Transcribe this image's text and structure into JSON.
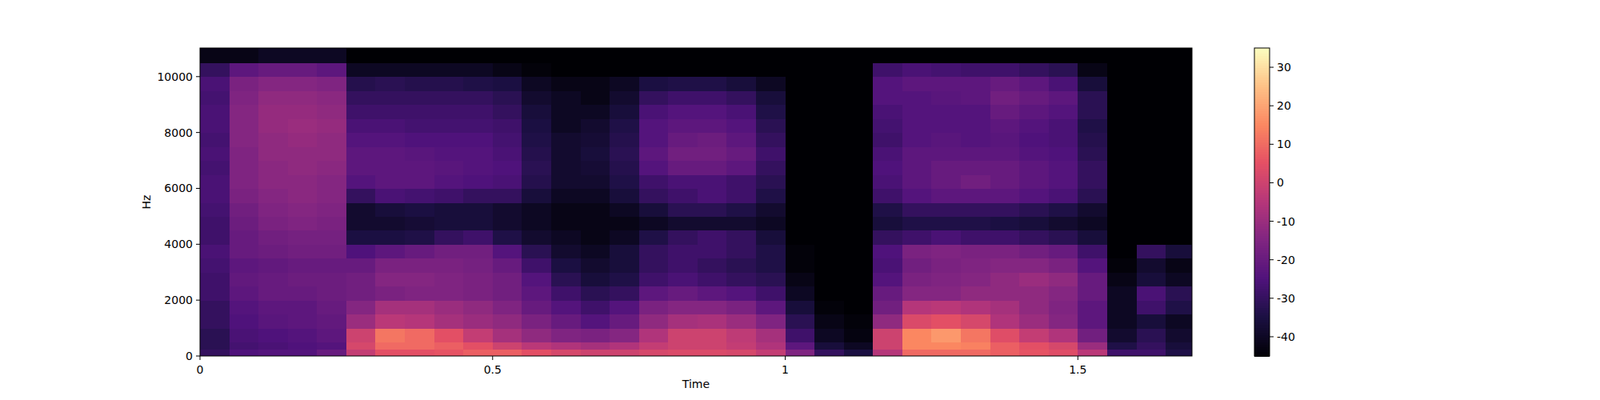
{
  "chart_data": {
    "type": "heatmap",
    "x_label": "Time",
    "y_label": "Hz",
    "xlim": [
      0,
      1.695
    ],
    "ylim": [
      0,
      11025
    ],
    "xticks": [
      0,
      0.5,
      1,
      1.5
    ],
    "yticks": [
      0,
      2000,
      4000,
      6000,
      8000,
      10000
    ],
    "x_edges": [
      0,
      0.05,
      0.1,
      0.15,
      0.2,
      0.25,
      0.3,
      0.35,
      0.4,
      0.45,
      0.5,
      0.55,
      0.6,
      0.65,
      0.7,
      0.75,
      0.8,
      0.85,
      0.9,
      0.95,
      1.0,
      1.05,
      1.1,
      1.15,
      1.2,
      1.25,
      1.3,
      1.35,
      1.4,
      1.45,
      1.5,
      1.55,
      1.6,
      1.65,
      1.695
    ],
    "y_edges": [
      0,
      250,
      500,
      1000,
      1500,
      2000,
      2500,
      3000,
      3500,
      4000,
      4500,
      5000,
      5500,
      6000,
      6500,
      7000,
      7500,
      8000,
      8500,
      9000,
      9500,
      10000,
      10500,
      11025
    ],
    "cells": [
      [
        -30,
        -32,
        -32,
        -30,
        -30,
        -28,
        -28,
        -27,
        -26,
        -28,
        -28,
        -27,
        -26,
        -26,
        -27,
        -26,
        -27,
        -26,
        -26,
        -27,
        -26,
        -30,
        -42
      ],
      [
        -25,
        -27,
        -26,
        -25,
        -24,
        -22,
        -21,
        -22,
        -20,
        -20,
        -19,
        -18,
        -16,
        -15,
        -15,
        -15,
        -14,
        -14,
        -14,
        -15,
        -16,
        -22,
        -42
      ],
      [
        -24,
        -26,
        -25,
        -23,
        -22,
        -20,
        -20,
        -21,
        -19,
        -18,
        -16,
        -15,
        -14,
        -13,
        -13,
        -12,
        -12,
        -11,
        -11,
        -12,
        -14,
        -20,
        -40
      ],
      [
        -24,
        -25,
        -24,
        -22,
        -22,
        -20,
        -19,
        -20,
        -18,
        -17,
        -15,
        -14,
        -13,
        -13,
        -12,
        -12,
        -11,
        -10,
        -11,
        -12,
        -14,
        -20,
        -40
      ],
      [
        -20,
        -24,
        -22,
        -21,
        -20,
        -19,
        -19,
        -20,
        -18,
        -17,
        -16,
        -15,
        -14,
        -14,
        -13,
        -12,
        -12,
        -11,
        -12,
        -13,
        -15,
        -22,
        -40
      ],
      [
        -2,
        2,
        0,
        -10,
        -14,
        -18,
        -18,
        -20,
        -25,
        -35,
        -38,
        -38,
        -30,
        -24,
        -22,
        -22,
        -24,
        -26,
        -28,
        -30,
        -33,
        -40,
        -45
      ],
      [
        5,
        10,
        12,
        -4,
        -8,
        -16,
        -14,
        -16,
        -22,
        -35,
        -38,
        -36,
        -26,
        -22,
        -22,
        -22,
        -24,
        -26,
        -28,
        -30,
        -32,
        -40,
        -45
      ],
      [
        5,
        10,
        10,
        -5,
        -8,
        -15,
        -14,
        -16,
        -20,
        -34,
        -37,
        -35,
        -27,
        -22,
        -22,
        -23,
        -25,
        -27,
        -28,
        -30,
        -33,
        -40,
        -45
      ],
      [
        6,
        8,
        5,
        -8,
        -10,
        -15,
        -15,
        -16,
        -18,
        -30,
        -36,
        -36,
        -28,
        -24,
        -23,
        -24,
        -25,
        -27,
        -28,
        -30,
        -33,
        -40,
        -45
      ],
      [
        8,
        5,
        -2,
        -10,
        -12,
        -16,
        -16,
        -17,
        -18,
        -28,
        -36,
        -36,
        -30,
        -25,
        -24,
        -24,
        -25,
        -27,
        -28,
        -30,
        -34,
        -40,
        -45
      ],
      [
        8,
        0,
        -8,
        -12,
        -15,
        -18,
        -18,
        -20,
        -24,
        -34,
        -38,
        -38,
        -30,
        -26,
        -25,
        -26,
        -27,
        -28,
        -30,
        -32,
        -35,
        -42,
        -45
      ],
      [
        5,
        -4,
        -12,
        -16,
        -20,
        -22,
        -24,
        -28,
        -32,
        -38,
        -40,
        -40,
        -36,
        -33,
        -32,
        -33,
        -34,
        -35,
        -36,
        -38,
        -40,
        -44,
        -45
      ],
      [
        2,
        -6,
        -15,
        -20,
        -24,
        -28,
        -32,
        -35,
        -38,
        -40,
        -42,
        -42,
        -40,
        -38,
        -38,
        -38,
        -38,
        -40,
        -40,
        -40,
        -42,
        -45,
        -45
      ],
      [
        0,
        -8,
        -16,
        -24,
        -28,
        -32,
        -36,
        -38,
        -40,
        -42,
        -42,
        -42,
        -40,
        -38,
        -37,
        -36,
        -37,
        -38,
        -40,
        -42,
        -42,
        -45,
        -45
      ],
      [
        0,
        -6,
        -14,
        -20,
        -24,
        -30,
        -34,
        -36,
        -36,
        -40,
        -42,
        -40,
        -36,
        -34,
        -33,
        -32,
        -33,
        -34,
        -36,
        -38,
        -40,
        -45,
        -45
      ],
      [
        2,
        -2,
        -6,
        -12,
        -16,
        -22,
        -28,
        -30,
        -30,
        -34,
        -40,
        -36,
        -30,
        -28,
        -24,
        -22,
        -24,
        -24,
        -26,
        -30,
        -35,
        -45,
        -45
      ],
      [
        3,
        0,
        0,
        -8,
        -14,
        -20,
        -26,
        -28,
        -28,
        -30,
        -38,
        -32,
        -28,
        -26,
        -20,
        -18,
        -20,
        -22,
        -24,
        -28,
        -34,
        -45,
        -45
      ],
      [
        3,
        0,
        0,
        -7,
        -14,
        -22,
        -28,
        -30,
        -28,
        -28,
        -38,
        -32,
        -26,
        -26,
        -20,
        -18,
        -19,
        -22,
        -24,
        -28,
        -34,
        -45,
        -45
      ],
      [
        2,
        -2,
        -3,
        -10,
        -16,
        -24,
        -30,
        -32,
        -30,
        -30,
        -38,
        -34,
        -28,
        -28,
        -22,
        -20,
        -22,
        -24,
        -26,
        -30,
        -36,
        -45,
        -45
      ],
      [
        -2,
        -6,
        -8,
        -15,
        -22,
        -28,
        -32,
        -34,
        -34,
        -36,
        -40,
        -38,
        -34,
        -32,
        -30,
        -28,
        -30,
        -32,
        -34,
        -36,
        -40,
        -45,
        -45
      ],
      [
        -15,
        -22,
        -28,
        -32,
        -36,
        -40,
        -42,
        -44,
        -44,
        -45,
        -45,
        -45,
        -45,
        -45,
        -45,
        -45,
        -45,
        -45,
        -45,
        -45,
        -45,
        -45,
        -45
      ],
      [
        -30,
        -36,
        -40,
        -42,
        -44,
        -45,
        -45,
        -45,
        -45,
        -45,
        -45,
        -45,
        -45,
        -45,
        -45,
        -45,
        -45,
        -45,
        -45,
        -45,
        -45,
        -45,
        -45
      ],
      [
        -35,
        -40,
        -43,
        -44,
        -45,
        -45,
        -45,
        -45,
        -45,
        -45,
        -45,
        -45,
        -45,
        -45,
        -45,
        -45,
        -45,
        -45,
        -45,
        -45,
        -45,
        -45,
        -45
      ],
      [
        -5,
        0,
        0,
        -12,
        -18,
        -20,
        -24,
        -26,
        -25,
        -30,
        -36,
        -34,
        -28,
        -26,
        -25,
        -26,
        -28,
        -27,
        -26,
        -24,
        -24,
        -28,
        -45
      ],
      [
        10,
        15,
        15,
        3,
        -5,
        -14,
        -16,
        -18,
        -16,
        -28,
        -34,
        -30,
        -24,
        -22,
        -22,
        -22,
        -24,
        -24,
        -24,
        -24,
        -22,
        -26,
        -45
      ],
      [
        10,
        15,
        18,
        5,
        -4,
        -14,
        -15,
        -16,
        -15,
        -26,
        -34,
        -30,
        -22,
        -20,
        -20,
        -22,
        -23,
        -24,
        -24,
        -23,
        -22,
        -27,
        -45
      ],
      [
        10,
        14,
        12,
        2,
        -6,
        -12,
        -14,
        -15,
        -16,
        -28,
        -34,
        -30,
        -22,
        -18,
        -20,
        -22,
        -24,
        -24,
        -24,
        -22,
        -22,
        -28,
        -45
      ],
      [
        8,
        8,
        4,
        -6,
        -8,
        -12,
        -12,
        -14,
        -16,
        -28,
        -35,
        -30,
        -22,
        -20,
        -20,
        -22,
        -23,
        -22,
        -20,
        -18,
        -20,
        -28,
        -45
      ],
      [
        6,
        5,
        -2,
        -10,
        -12,
        -12,
        -10,
        -14,
        -18,
        -30,
        -36,
        -32,
        -24,
        -22,
        -22,
        -24,
        -25,
        -24,
        -22,
        -20,
        -22,
        -30,
        -45
      ],
      [
        4,
        2,
        -6,
        -14,
        -15,
        -14,
        -12,
        -16,
        -20,
        -32,
        -38,
        -34,
        -26,
        -24,
        -24,
        -25,
        -26,
        -26,
        -24,
        -22,
        -26,
        -32,
        -45
      ],
      [
        -4,
        -10,
        -18,
        -22,
        -22,
        -20,
        -20,
        -24,
        -28,
        -36,
        -40,
        -38,
        -32,
        -30,
        -30,
        -32,
        -33,
        -34,
        -32,
        -32,
        -36,
        -42,
        -45
      ],
      [
        -28,
        -34,
        -38,
        -40,
        -40,
        -40,
        -42,
        -44,
        -45,
        -45,
        -45,
        -45,
        -45,
        -45,
        -45,
        -45,
        -45,
        -45,
        -45,
        -45,
        -45,
        -45,
        -45
      ],
      [
        -28,
        -30,
        -32,
        -36,
        -28,
        -26,
        -36,
        -38,
        -30,
        -45,
        -45,
        -45,
        -45,
        -45,
        -45,
        -45,
        -45,
        -45,
        -45,
        -45,
        -45,
        -45,
        -45
      ],
      [
        -34,
        -36,
        -38,
        -40,
        -34,
        -32,
        -40,
        -42,
        -36,
        -45,
        -45,
        -45,
        -45,
        -45,
        -45,
        -45,
        -45,
        -45,
        -45,
        -45,
        -45,
        -45,
        -45
      ]
    ],
    "colorbar_range": [
      -45,
      35
    ],
    "colorbar_ticks": [
      -40,
      -30,
      -20,
      -10,
      0,
      10,
      20,
      30
    ]
  }
}
